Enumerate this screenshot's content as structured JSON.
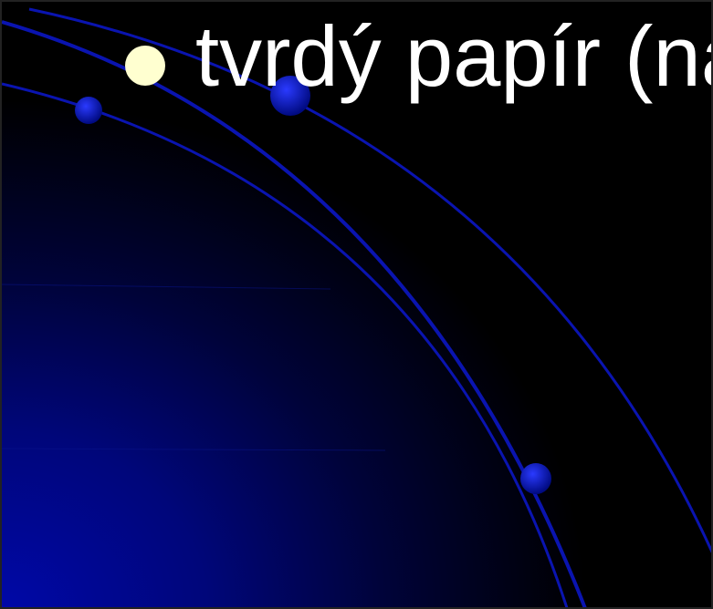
{
  "slide": {
    "bullets": [
      "tvrdý papír (na"
    ]
  }
}
